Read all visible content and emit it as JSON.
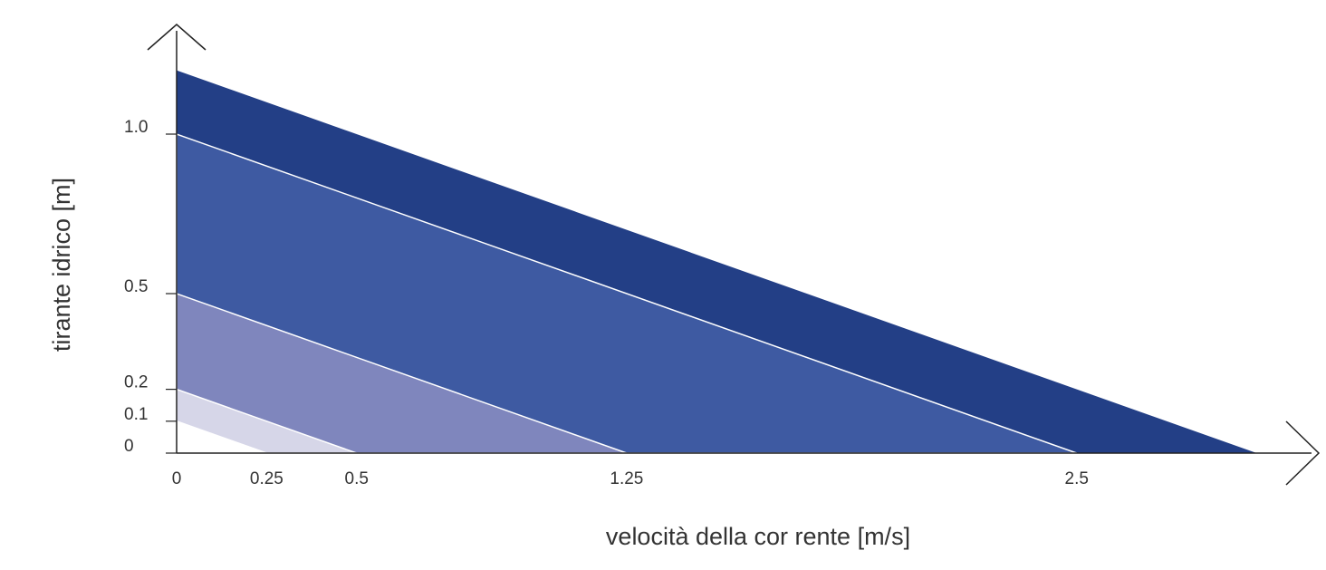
{
  "chart_data": {
    "type": "area",
    "xlabel": "velocità della cor rente  [m/s]",
    "ylabel": "tirante idrico [m]",
    "x_ticks": [
      "0",
      "0.25",
      "0.5",
      "1.25",
      "2.5"
    ],
    "y_ticks": [
      "0",
      "0.1",
      "0.2",
      "0.5",
      "1.0"
    ],
    "grid": false,
    "legend": "none",
    "series": [
      {
        "x": [
          0,
          3.0
        ],
        "y": [
          1.2,
          0
        ],
        "color": "#233f86"
      },
      {
        "x": [
          0,
          2.5
        ],
        "y": [
          1.0,
          0
        ],
        "color": "#3e5aa2"
      },
      {
        "x": [
          0,
          1.25
        ],
        "y": [
          0.5,
          0
        ],
        "color": "#7f86bd"
      },
      {
        "x": [
          0,
          0.5
        ],
        "y": [
          0.2,
          0
        ],
        "color": "#d6d6e8"
      },
      {
        "x": [
          0,
          0.25
        ],
        "y": [
          0.1,
          0
        ],
        "color": "#ffffff"
      }
    ],
    "axis_color": "#222222"
  }
}
